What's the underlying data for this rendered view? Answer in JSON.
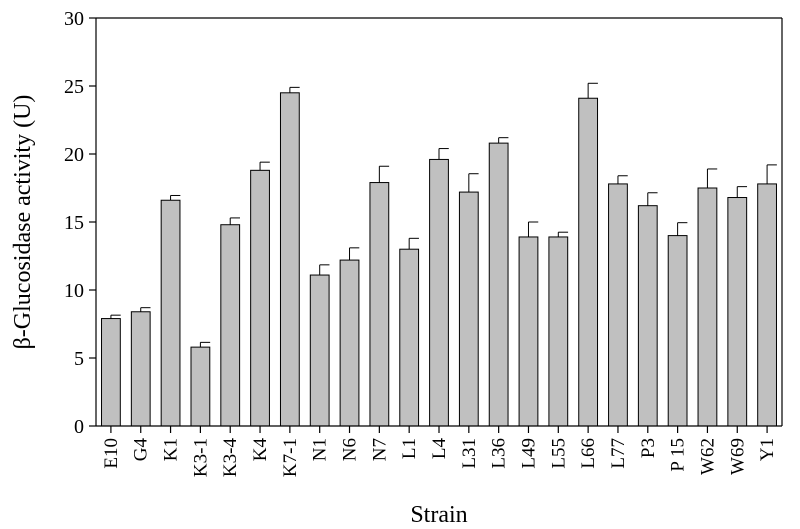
{
  "chart_data": {
    "type": "bar",
    "xlabel": "Strain",
    "ylabel": "β-Glucosidase activity (U)",
    "ylim": [
      0,
      30
    ],
    "yticks": [
      0,
      5,
      10,
      15,
      20,
      25,
      30
    ],
    "grid": false,
    "bar_color": "#c0c0c0",
    "categories": [
      "E10",
      "G4",
      "K1",
      "K3-1",
      "K3-4",
      "K4",
      "K7-1",
      "N1",
      "N6",
      "N7",
      "L1",
      "L4",
      "L31",
      "L36",
      "L49",
      "L55",
      "L66",
      "L77",
      "P3",
      "P 15",
      "W62",
      "W69",
      "Y1"
    ],
    "values": [
      7.9,
      8.4,
      16.6,
      5.8,
      14.8,
      18.8,
      24.5,
      11.1,
      12.2,
      17.9,
      13.0,
      19.6,
      17.2,
      20.8,
      13.9,
      13.9,
      24.1,
      17.8,
      16.2,
      14.0,
      17.5,
      16.8,
      17.8
    ],
    "errors": [
      0.25,
      0.3,
      0.35,
      0.35,
      0.5,
      0.6,
      0.4,
      0.75,
      0.9,
      1.2,
      0.8,
      0.8,
      1.35,
      0.4,
      1.1,
      0.35,
      1.1,
      0.6,
      0.95,
      0.95,
      1.4,
      0.8,
      1.4
    ]
  }
}
